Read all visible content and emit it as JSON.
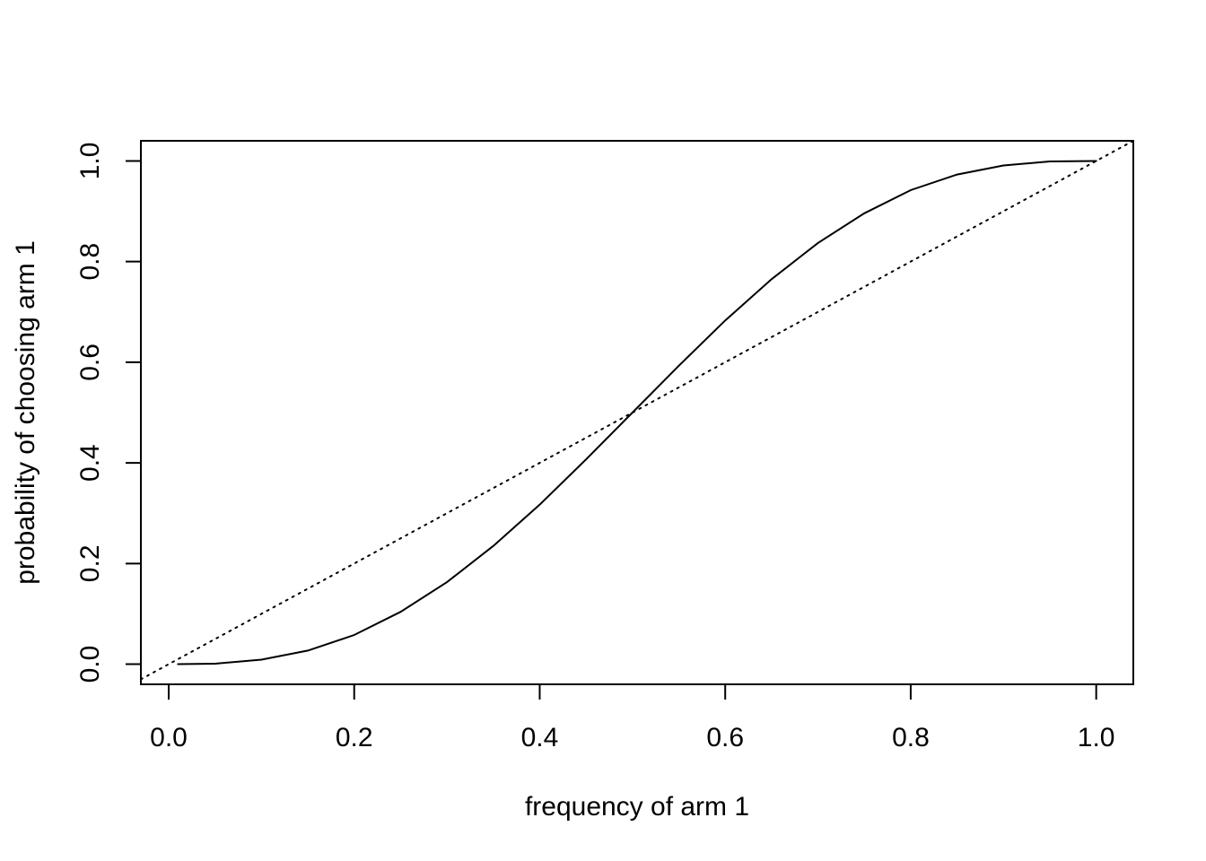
{
  "chart_data": {
    "type": "line",
    "x_label": "frequency of arm 1",
    "y_label": "probability of choosing arm 1",
    "series": [
      {
        "color": "#000000",
        "dash": "solid",
        "x": [
          0.01,
          0.05,
          0.1,
          0.15,
          0.2,
          0.25,
          0.3,
          0.35,
          0.4,
          0.45,
          0.5,
          0.55,
          0.6,
          0.65,
          0.7,
          0.75,
          0.8,
          0.85,
          0.9,
          0.95,
          1.0
        ],
        "values": [
          0.0,
          0.001,
          0.009,
          0.027,
          0.058,
          0.104,
          0.163,
          0.235,
          0.317,
          0.407,
          0.5,
          0.593,
          0.683,
          0.765,
          0.837,
          0.896,
          0.942,
          0.973,
          0.991,
          0.999,
          1.0
        ]
      },
      {
        "color": "#000000",
        "dash": "dotted",
        "x": [
          -0.03,
          1.04
        ],
        "values": [
          -0.03,
          1.04
        ]
      }
    ],
    "xlim": [
      -0.03,
      1.04
    ],
    "ylim": [
      -0.04,
      1.04
    ],
    "xticks": [
      {
        "value": 0,
        "label": "0.0"
      },
      0.2,
      0.4,
      0.6,
      0.8,
      {
        "value": 1,
        "label": "1.0"
      }
    ],
    "yticks": [
      {
        "value": 0,
        "label": "0.0"
      },
      0.2,
      0.4,
      0.6,
      0.8,
      {
        "value": 1,
        "label": "1.0"
      }
    ],
    "grid": false
  }
}
